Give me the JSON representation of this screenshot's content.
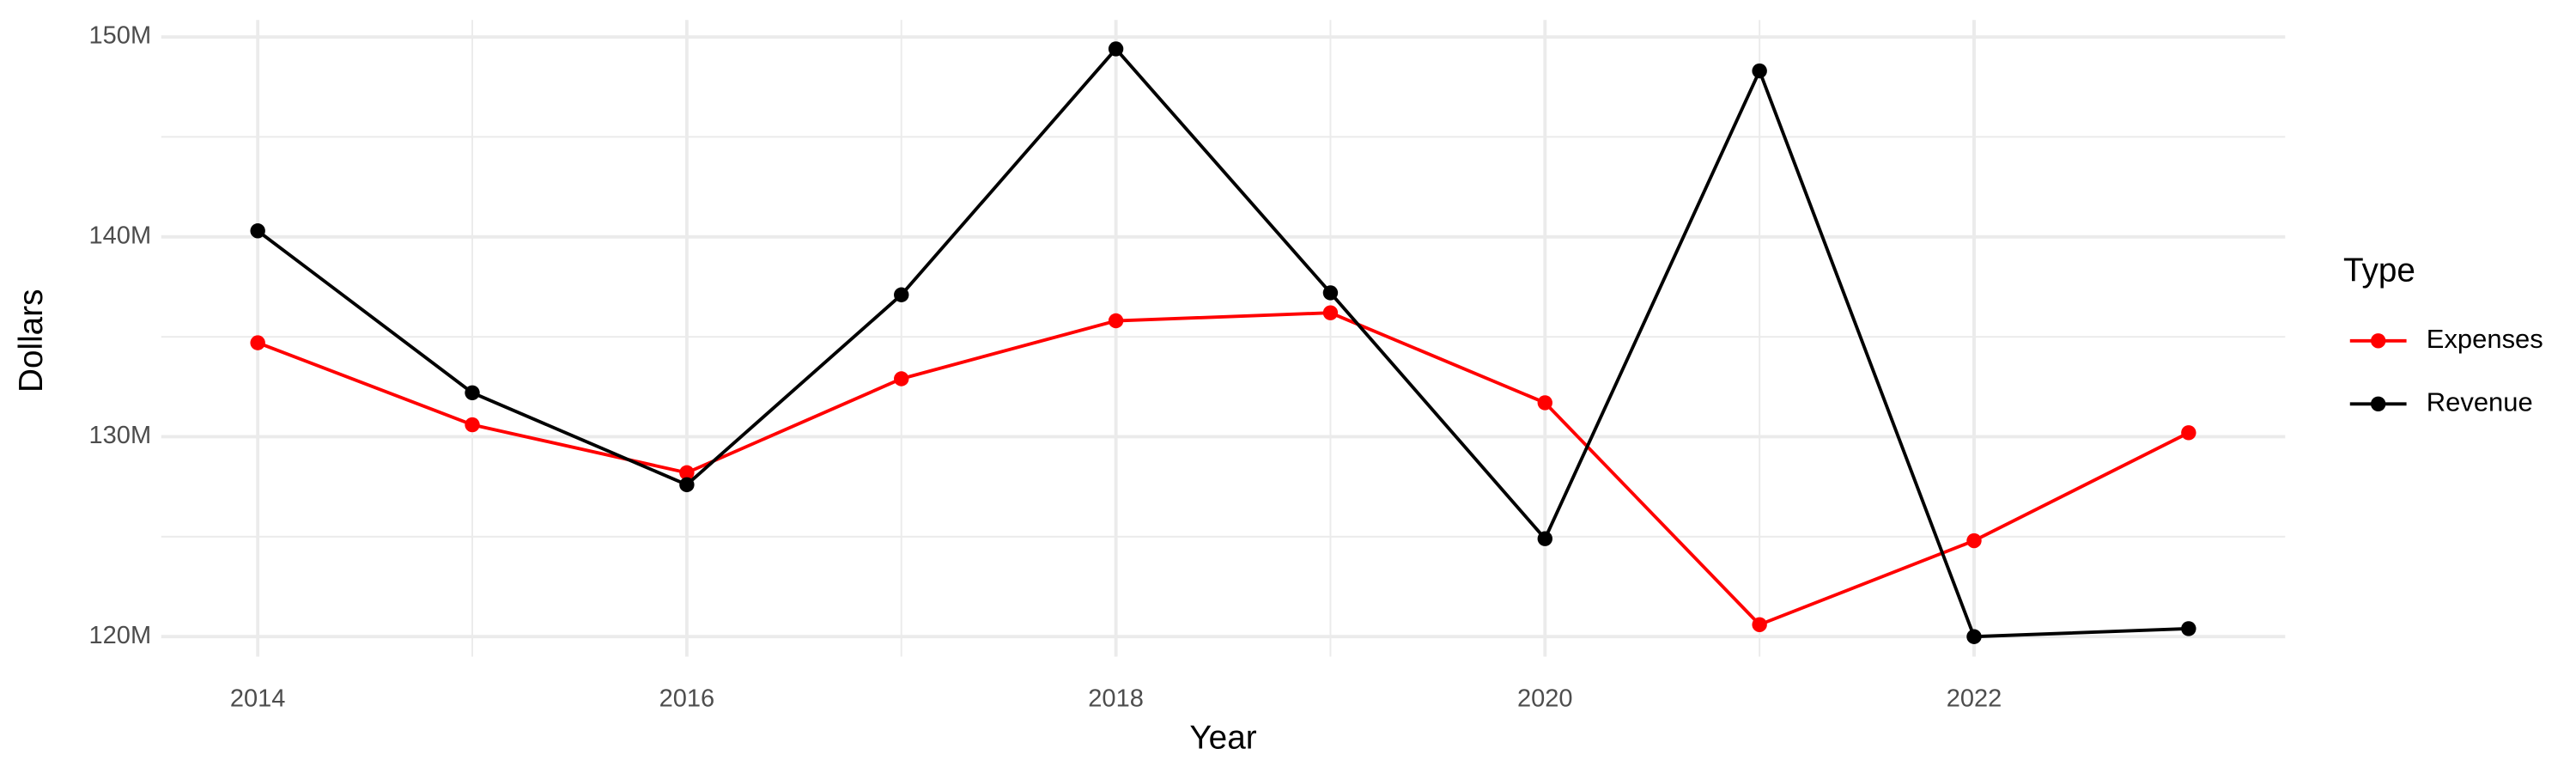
{
  "chart_data": {
    "type": "line",
    "x_label": "Year",
    "y_label": "Dollars",
    "legend_title": "Type",
    "x": [
      2014,
      2015,
      2016,
      2017,
      2018,
      2019,
      2020,
      2021,
      2022,
      2023
    ],
    "series": [
      {
        "name": "Expenses",
        "color": "#ff0000",
        "values": [
          134700000,
          130600000,
          128200000,
          132900000,
          135800000,
          136200000,
          131700000,
          120600000,
          124800000,
          130200000
        ]
      },
      {
        "name": "Revenue",
        "color": "#000000",
        "values": [
          140300000,
          132200000,
          127600000,
          137100000,
          149400000,
          137200000,
          124900000,
          148300000,
          120000000,
          120400000
        ]
      }
    ],
    "xlim": [
      2013.55,
      2023.45
    ],
    "xticks": [
      2014,
      2016,
      2018,
      2020,
      2022
    ],
    "ylim": [
      119000000,
      150850000
    ],
    "yticks": [
      {
        "value": 120000000,
        "label": "120M"
      },
      {
        "value": 130000000,
        "label": "130M"
      },
      {
        "value": 140000000,
        "label": "140M"
      },
      {
        "value": 150000000,
        "label": "150M"
      }
    ],
    "grid": true,
    "legend": "right"
  }
}
